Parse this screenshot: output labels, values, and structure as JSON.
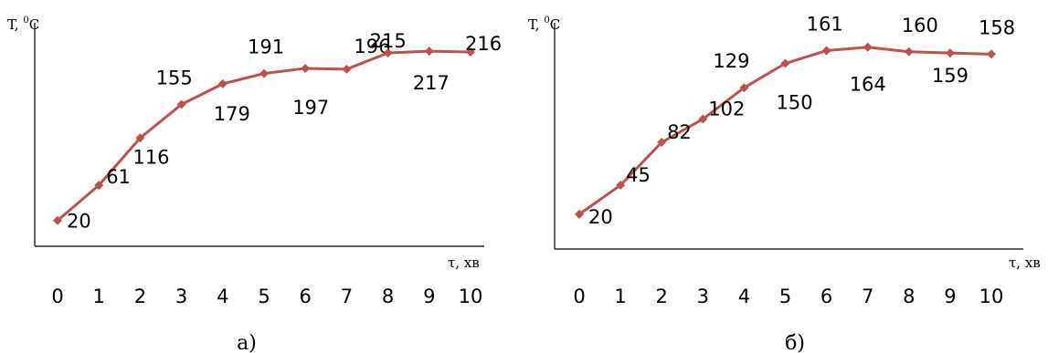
{
  "colors": {
    "series": "#c0504d",
    "axis": "#000000",
    "text": "#000000"
  },
  "chart_data": [
    {
      "type": "line",
      "panel": "a)",
      "ylabel": {
        "main": "T, ",
        "sup": "0",
        "unit": "C"
      },
      "xlabel": "τ, хв",
      "x": [
        0,
        1,
        2,
        3,
        4,
        5,
        6,
        7,
        8,
        9,
        10
      ],
      "y": [
        20,
        61,
        116,
        155,
        179,
        191,
        197,
        196,
        215,
        217,
        216
      ],
      "data_labels": [
        "20",
        "61",
        "116",
        "155",
        "179",
        "191",
        "197",
        "196",
        "215",
        "217",
        "216"
      ],
      "x_tick_labels": [
        "0",
        "1",
        "2",
        "3",
        "4",
        "5",
        "6",
        "7",
        "8",
        "9",
        "10"
      ],
      "ylim": [
        -10,
        250
      ],
      "grid": false,
      "marker": "diamond"
    },
    {
      "type": "line",
      "panel": "б)",
      "ylabel": {
        "main": "T, ",
        "sup": "0",
        "unit": "C"
      },
      "xlabel": "τ, хв",
      "x": [
        0,
        1,
        2,
        3,
        4,
        5,
        6,
        7,
        8,
        9,
        10
      ],
      "y": [
        20,
        45,
        82,
        102,
        129,
        150,
        161,
        164,
        160,
        159,
        158
      ],
      "data_labels": [
        "20",
        "45",
        "82",
        "102",
        "129",
        "150",
        "161",
        "164",
        "160",
        "159",
        "158"
      ],
      "x_tick_labels": [
        "0",
        "1",
        "2",
        "3",
        "4",
        "5",
        "6",
        "7",
        "8",
        "9",
        "10"
      ],
      "ylim": [
        -10,
        185
      ],
      "grid": false,
      "marker": "diamond"
    }
  ]
}
